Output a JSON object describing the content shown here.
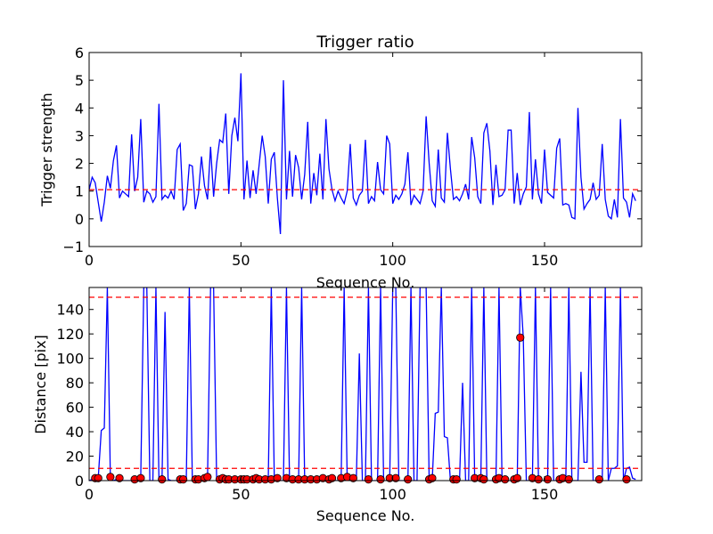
{
  "chart_data": [
    {
      "type": "line",
      "title": "Trigger ratio",
      "xlabel": "Sequence No.",
      "ylabel": "Trigger strength",
      "xlim": [
        0,
        182
      ],
      "ylim": [
        -1,
        6
      ],
      "xticks": [
        0,
        50,
        100,
        150
      ],
      "yticks": [
        -1,
        0,
        1,
        2,
        3,
        4,
        5,
        6
      ],
      "grid": false,
      "line_color": "#0000ff",
      "threshold_color": "#ff0000",
      "threshold": 1.05,
      "values": [
        1.05,
        1.5,
        1.3,
        0.6,
        -0.1,
        0.6,
        1.55,
        1.1,
        2.1,
        2.65,
        0.75,
        1.0,
        0.9,
        0.8,
        3.05,
        1.0,
        1.5,
        3.6,
        0.6,
        1.0,
        0.9,
        0.6,
        0.8,
        4.15,
        0.7,
        0.85,
        0.75,
        1.0,
        0.7,
        2.5,
        2.7,
        0.3,
        0.55,
        1.95,
        1.9,
        0.35,
        0.9,
        2.25,
        1.2,
        0.7,
        2.6,
        0.8,
        2.0,
        2.85,
        2.75,
        3.8,
        0.9,
        3.0,
        3.65,
        2.8,
        5.25,
        0.7,
        2.1,
        0.75,
        1.75,
        0.9,
        1.95,
        3.0,
        2.25,
        0.55,
        2.15,
        2.4,
        0.75,
        -0.55,
        5.0,
        0.7,
        2.45,
        0.8,
        2.3,
        1.85,
        0.7,
        1.6,
        3.5,
        0.55,
        1.65,
        0.85,
        2.35,
        0.7,
        3.6,
        1.8,
        1.05,
        0.65,
        1.0,
        0.75,
        0.55,
        1.0,
        2.7,
        0.75,
        0.5,
        0.85,
        1.0,
        2.85,
        0.55,
        0.8,
        0.65,
        2.05,
        1.05,
        0.9,
        3.0,
        2.7,
        0.55,
        0.85,
        0.7,
        0.9,
        1.25,
        2.4,
        0.5,
        0.85,
        0.7,
        0.55,
        1.0,
        3.7,
        2.0,
        0.65,
        0.45,
        2.5,
        0.75,
        0.6,
        3.1,
        1.8,
        0.7,
        0.8,
        0.65,
        0.9,
        1.25,
        0.7,
        2.95,
        2.2,
        0.8,
        0.55,
        3.1,
        3.45,
        2.45,
        0.5,
        1.95,
        0.8,
        0.85,
        1.05,
        3.2,
        3.2,
        0.55,
        1.65,
        0.5,
        0.9,
        1.15,
        3.85,
        0.7,
        2.15,
        0.9,
        0.55,
        2.5,
        0.95,
        0.85,
        0.75,
        2.55,
        2.9,
        0.5,
        0.55,
        0.5,
        0.05,
        0.0,
        4.0,
        1.5,
        0.35,
        0.55,
        0.7,
        1.3,
        0.7,
        0.85,
        2.7,
        0.7,
        0.1,
        0.0,
        0.7,
        0.05,
        3.6,
        0.75,
        0.6,
        0.05,
        0.9,
        0.65
      ]
    },
    {
      "type": "line",
      "xlabel": "Sequence No.",
      "ylabel": "Distance [pix]",
      "xlim": [
        0,
        182
      ],
      "ylim": [
        0,
        158
      ],
      "xticks": [
        0,
        50,
        100,
        150
      ],
      "yticks": [
        0,
        20,
        40,
        60,
        80,
        100,
        120,
        140
      ],
      "grid": false,
      "line_color": "#0000ff",
      "marker_color": "#ff0000",
      "thresholds": [
        10,
        150
      ],
      "values": [
        0,
        1,
        1,
        2,
        41,
        43,
        158,
        1,
        0,
        1,
        0,
        0,
        0,
        0,
        0,
        1,
        0,
        2,
        158,
        158,
        0,
        0,
        158,
        0,
        0,
        138,
        1,
        0,
        0,
        0,
        0,
        0,
        0,
        158,
        0,
        0,
        0,
        0,
        1,
        2,
        158,
        158,
        0,
        0,
        0,
        0,
        0,
        0,
        0,
        0,
        0,
        0,
        0,
        0,
        0,
        0,
        0,
        0,
        0,
        0,
        158,
        0,
        0,
        0,
        0,
        158,
        0,
        0,
        0,
        0,
        158,
        0,
        0,
        0,
        0,
        0,
        0,
        0,
        0,
        0,
        0,
        0,
        0,
        0,
        158,
        0,
        0,
        0,
        0,
        104,
        0,
        0,
        158,
        0,
        0,
        0,
        158,
        0,
        0,
        0,
        158,
        158,
        0,
        0,
        0,
        0,
        158,
        0,
        0,
        158,
        158,
        158,
        0,
        0,
        55,
        56,
        158,
        36,
        35,
        0,
        0,
        0,
        0,
        80,
        0,
        0,
        158,
        0,
        0,
        0,
        158,
        0,
        0,
        0,
        0,
        158,
        0,
        0,
        0,
        0,
        0,
        0,
        158,
        117,
        0,
        0,
        0,
        158,
        0,
        0,
        0,
        0,
        158,
        0,
        0,
        0,
        0,
        0,
        158,
        0,
        0,
        0,
        89,
        15,
        15,
        158,
        0,
        0,
        0,
        0,
        158,
        0,
        10,
        10,
        12,
        158,
        0,
        10,
        11,
        2,
        1
      ],
      "markers": [
        {
          "x": 2,
          "y": 2
        },
        {
          "x": 3,
          "y": 2
        },
        {
          "x": 7,
          "y": 3
        },
        {
          "x": 10,
          "y": 2
        },
        {
          "x": 15,
          "y": 1
        },
        {
          "x": 17,
          "y": 2
        },
        {
          "x": 24,
          "y": 1
        },
        {
          "x": 30,
          "y": 1
        },
        {
          "x": 31,
          "y": 1
        },
        {
          "x": 35,
          "y": 1
        },
        {
          "x": 36,
          "y": 1
        },
        {
          "x": 38,
          "y": 2
        },
        {
          "x": 39,
          "y": 3
        },
        {
          "x": 43,
          "y": 1
        },
        {
          "x": 44,
          "y": 2
        },
        {
          "x": 45,
          "y": 1
        },
        {
          "x": 46,
          "y": 1
        },
        {
          "x": 48,
          "y": 1
        },
        {
          "x": 50,
          "y": 1
        },
        {
          "x": 51,
          "y": 1
        },
        {
          "x": 52,
          "y": 1
        },
        {
          "x": 54,
          "y": 1
        },
        {
          "x": 55,
          "y": 2
        },
        {
          "x": 56,
          "y": 1
        },
        {
          "x": 58,
          "y": 1
        },
        {
          "x": 60,
          "y": 1
        },
        {
          "x": 62,
          "y": 2
        },
        {
          "x": 65,
          "y": 2
        },
        {
          "x": 67,
          "y": 1
        },
        {
          "x": 69,
          "y": 1
        },
        {
          "x": 71,
          "y": 1
        },
        {
          "x": 73,
          "y": 1
        },
        {
          "x": 75,
          "y": 1
        },
        {
          "x": 77,
          "y": 2
        },
        {
          "x": 79,
          "y": 1
        },
        {
          "x": 80,
          "y": 2
        },
        {
          "x": 83,
          "y": 2
        },
        {
          "x": 85,
          "y": 3
        },
        {
          "x": 87,
          "y": 2
        },
        {
          "x": 92,
          "y": 1
        },
        {
          "x": 96,
          "y": 1
        },
        {
          "x": 99,
          "y": 2
        },
        {
          "x": 101,
          "y": 2
        },
        {
          "x": 105,
          "y": 1
        },
        {
          "x": 112,
          "y": 1
        },
        {
          "x": 113,
          "y": 2
        },
        {
          "x": 120,
          "y": 1
        },
        {
          "x": 121,
          "y": 1
        },
        {
          "x": 127,
          "y": 2
        },
        {
          "x": 129,
          "y": 2
        },
        {
          "x": 130,
          "y": 1
        },
        {
          "x": 134,
          "y": 1
        },
        {
          "x": 135,
          "y": 2
        },
        {
          "x": 137,
          "y": 1
        },
        {
          "x": 140,
          "y": 1
        },
        {
          "x": 141,
          "y": 2
        },
        {
          "x": 142,
          "y": 117
        },
        {
          "x": 146,
          "y": 2
        },
        {
          "x": 148,
          "y": 1
        },
        {
          "x": 151,
          "y": 1
        },
        {
          "x": 155,
          "y": 1
        },
        {
          "x": 156,
          "y": 2
        },
        {
          "x": 158,
          "y": 1
        },
        {
          "x": 168,
          "y": 1
        },
        {
          "x": 177,
          "y": 1
        }
      ]
    }
  ]
}
